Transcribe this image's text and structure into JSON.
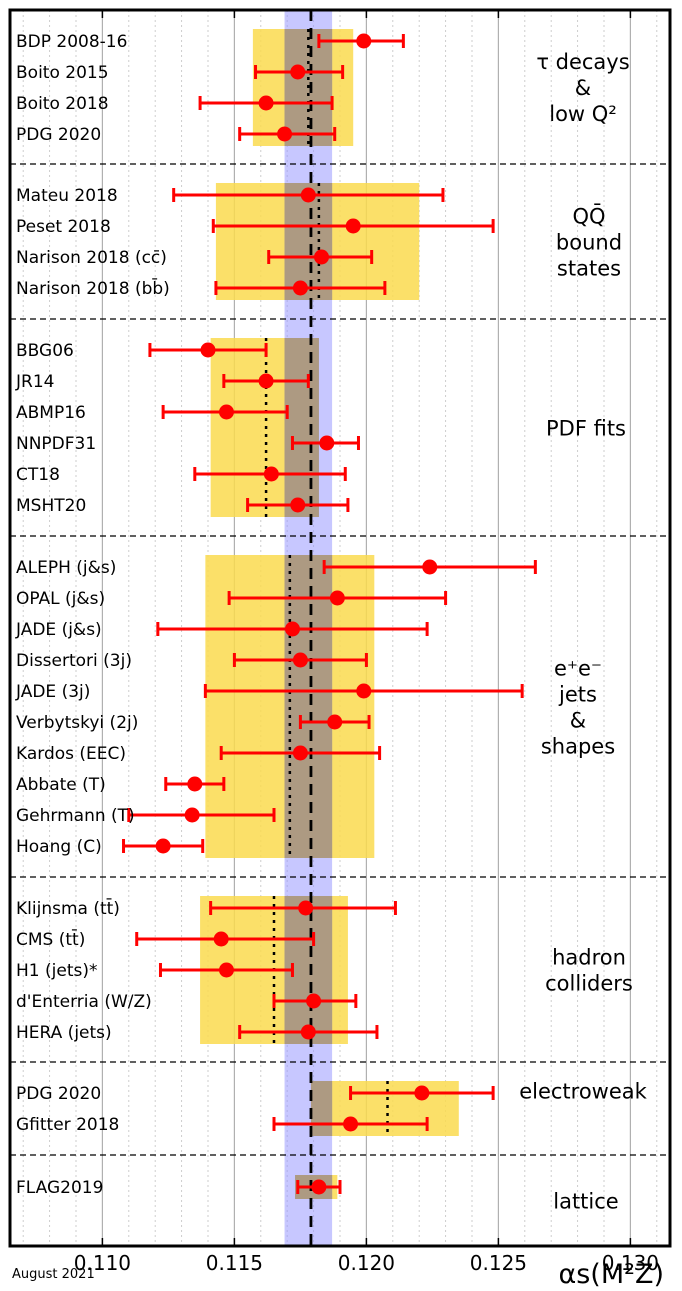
{
  "chart_data": {
    "type": "scatter",
    "xlabel": "αs(M²Z)",
    "xlim": [
      0.1065,
      0.1315
    ],
    "xticks": [
      0.11,
      0.115,
      0.12,
      0.125,
      0.13
    ],
    "xtick_labels": [
      "0.110",
      "0.115",
      "0.120",
      "0.125",
      "0.130"
    ],
    "grid": "vertical",
    "colors": {
      "point": "#ff0000",
      "band_yellow": "#fada4f",
      "band_world_average": "#9999ff",
      "band_overlap": "#ad9a82"
    },
    "world_average": {
      "value": 0.1179,
      "band": [
        0.1169,
        0.1187
      ]
    },
    "groups": [
      {
        "label_lines": [
          "τ decays",
          "&",
          "low Q²"
        ],
        "band": [
          0.1157,
          0.1195
        ],
        "average": 0.1178,
        "average_line": "dotted",
        "measurements": [
          {
            "name": "BDP 2008-16",
            "value": 0.1199,
            "err_low": 0.1182,
            "err_high": 0.1214
          },
          {
            "name": "Boito 2015",
            "value": 0.1174,
            "err_low": 0.1158,
            "err_high": 0.1191
          },
          {
            "name": "Boito 2018",
            "value": 0.1162,
            "err_low": 0.1137,
            "err_high": 0.1187
          },
          {
            "name": "PDG 2020",
            "value": 0.1169,
            "err_low": 0.1152,
            "err_high": 0.1188
          }
        ]
      },
      {
        "label_lines": [
          "QQ̄",
          "bound",
          "states"
        ],
        "band": [
          0.1143,
          0.122
        ],
        "average": 0.1182,
        "average_line": "dotted",
        "measurements": [
          {
            "name": "Mateu 2018",
            "value": 0.1178,
            "err_low": 0.1127,
            "err_high": 0.1229
          },
          {
            "name": "Peset 2018",
            "value": 0.1195,
            "err_low": 0.1142,
            "err_high": 0.1248
          },
          {
            "name": "Narison 2018 (cc̄)",
            "value": 0.1183,
            "err_low": 0.1163,
            "err_high": 0.1202
          },
          {
            "name": "Narison 2018 (bb̄)",
            "value": 0.1175,
            "err_low": 0.1143,
            "err_high": 0.1207
          }
        ]
      },
      {
        "label_lines": [
          "PDF fits"
        ],
        "band": [
          0.1141,
          0.1182
        ],
        "average": 0.1162,
        "average_line": "dotted",
        "measurements": [
          {
            "name": "BBG06",
            "value": 0.114,
            "err_low": 0.1118,
            "err_high": 0.1162
          },
          {
            "name": "JR14",
            "value": 0.1162,
            "err_low": 0.1146,
            "err_high": 0.1178
          },
          {
            "name": "ABMP16",
            "value": 0.1147,
            "err_low": 0.1123,
            "err_high": 0.117
          },
          {
            "name": "NNPDF31",
            "value": 0.1185,
            "err_low": 0.1172,
            "err_high": 0.1197
          },
          {
            "name": "CT18",
            "value": 0.1164,
            "err_low": 0.1135,
            "err_high": 0.1192
          },
          {
            "name": "MSHT20",
            "value": 0.1174,
            "err_low": 0.1155,
            "err_high": 0.1193
          }
        ]
      },
      {
        "label_lines": [
          "e⁺e⁻",
          "jets",
          "&",
          "shapes"
        ],
        "band": [
          0.1139,
          0.1203
        ],
        "average": 0.1171,
        "average_line": "dotted",
        "measurements": [
          {
            "name": "ALEPH (j&s)",
            "value": 0.1224,
            "err_low": 0.1184,
            "err_high": 0.1264
          },
          {
            "name": "OPAL (j&s)",
            "value": 0.1189,
            "err_low": 0.1148,
            "err_high": 0.123
          },
          {
            "name": "JADE (j&s)",
            "value": 0.1172,
            "err_low": 0.1121,
            "err_high": 0.1223
          },
          {
            "name": "Dissertori (3j)",
            "value": 0.1175,
            "err_low": 0.115,
            "err_high": 0.12
          },
          {
            "name": "JADE (3j)",
            "value": 0.1199,
            "err_low": 0.1139,
            "err_high": 0.1259
          },
          {
            "name": "Verbytskyi (2j)",
            "value": 0.1188,
            "err_low": 0.1175,
            "err_high": 0.1201
          },
          {
            "name": "Kardos (EEC)",
            "value": 0.1175,
            "err_low": 0.1145,
            "err_high": 0.1205
          },
          {
            "name": "Abbate (T)",
            "value": 0.1135,
            "err_low": 0.1124,
            "err_high": 0.1146
          },
          {
            "name": "Gehrmann (T)",
            "value": 0.1134,
            "err_low": 0.111,
            "err_high": 0.1165
          },
          {
            "name": "Hoang (C)",
            "value": 0.1123,
            "err_low": 0.1108,
            "err_high": 0.1138
          }
        ]
      },
      {
        "label_lines": [
          "hadron",
          "colliders"
        ],
        "band": [
          0.1137,
          0.1193
        ],
        "average": 0.1165,
        "average_line": "dotted",
        "measurements": [
          {
            "name": "Klijnsma (tt̄)",
            "value": 0.1177,
            "err_low": 0.1141,
            "err_high": 0.1211
          },
          {
            "name": "CMS (tt̄)",
            "value": 0.1145,
            "err_low": 0.1113,
            "err_high": 0.118
          },
          {
            "name": "H1 (jets)*",
            "value": 0.1147,
            "err_low": 0.1122,
            "err_high": 0.1172
          },
          {
            "name": "d'Enterria (W/Z)",
            "value": 0.118,
            "err_low": 0.1165,
            "err_high": 0.1196
          },
          {
            "name": "HERA (jets)",
            "value": 0.1178,
            "err_low": 0.1152,
            "err_high": 0.1204
          }
        ]
      },
      {
        "label_lines": [
          "electroweak"
        ],
        "band": [
          0.1179,
          0.1235
        ],
        "average": 0.1208,
        "average_line": "dotted",
        "measurements": [
          {
            "name": "PDG 2020",
            "value": 0.1221,
            "err_low": 0.1194,
            "err_high": 0.1248
          },
          {
            "name": "Gfitter 2018",
            "value": 0.1194,
            "err_low": 0.1165,
            "err_high": 0.1223
          }
        ]
      },
      {
        "label_lines": [
          "lattice"
        ],
        "band": [
          0.1173,
          0.1189
        ],
        "average": 0.1182,
        "average_line": "none",
        "measurements": [
          {
            "name": "FLAG2019",
            "value": 0.1182,
            "err_low": 0.1174,
            "err_high": 0.119
          }
        ]
      }
    ]
  },
  "footer": {
    "date": "August 2021"
  }
}
